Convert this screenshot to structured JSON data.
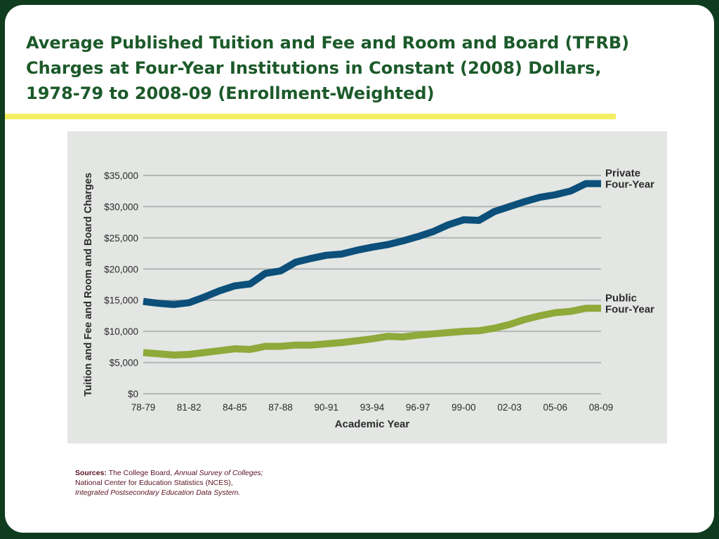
{
  "slide": {
    "title_lines": [
      "Average Published Tuition and Fee and Room and Board (TFRB)",
      "Charges at Four-Year Institutions in Constant (2008) Dollars,",
      "1978-79 to 2008-09 (Enrollment-Weighted)"
    ]
  },
  "colors": {
    "frame": "#0f3b1f",
    "title": "#1c5a2a",
    "rule": "#f4ee63",
    "panel": "#e3e6e3",
    "private_line": "#0b4f7a",
    "public_line": "#8fa93a",
    "sources_text": "#5a1020"
  },
  "chart_data": {
    "type": "line",
    "ylabel": "Tuition and Fee and Room and Board Charges",
    "xlabel": "Academic Year",
    "ylim": [
      0,
      35000
    ],
    "yticks": [
      0,
      5000,
      10000,
      15000,
      20000,
      25000,
      30000,
      35000
    ],
    "ytick_labels": [
      "$0",
      "$5,000",
      "$10,000",
      "$15,000",
      "$20,000",
      "$25,000",
      "$30,000",
      "$35,000"
    ],
    "x": [
      "78-79",
      "79-80",
      "80-81",
      "81-82",
      "82-83",
      "83-84",
      "84-85",
      "85-86",
      "86-87",
      "87-88",
      "88-89",
      "89-90",
      "90-91",
      "91-92",
      "92-93",
      "93-94",
      "94-95",
      "95-96",
      "96-97",
      "97-98",
      "98-99",
      "99-00",
      "00-01",
      "01-02",
      "02-03",
      "03-04",
      "04-05",
      "05-06",
      "06-07",
      "07-08",
      "08-09"
    ],
    "xtick_labels": [
      "78-79",
      "81-82",
      "84-85",
      "87-88",
      "90-91",
      "93-94",
      "96-97",
      "99-00",
      "02-03",
      "05-06",
      "08-09"
    ],
    "grid": true,
    "series": [
      {
        "name": "Private Four-Year",
        "label_lines": [
          "Private",
          "Four-Year"
        ],
        "values": [
          14800,
          14500,
          14300,
          14600,
          15500,
          16500,
          17300,
          17600,
          19300,
          19700,
          21100,
          21700,
          22200,
          22400,
          23000,
          23500,
          23900,
          24500,
          25200,
          26000,
          27100,
          27900,
          27800,
          29200,
          30000,
          30800,
          31500,
          31900,
          32500,
          33700,
          33700
        ]
      },
      {
        "name": "Public Four-Year",
        "label_lines": [
          "Public",
          "Four-Year"
        ],
        "values": [
          6600,
          6400,
          6200,
          6300,
          6600,
          6900,
          7200,
          7100,
          7600,
          7600,
          7800,
          7800,
          8000,
          8200,
          8500,
          8800,
          9200,
          9100,
          9400,
          9600,
          9800,
          10000,
          10100,
          10500,
          11100,
          11900,
          12500,
          13000,
          13200,
          13700,
          13700
        ]
      }
    ]
  },
  "sources": {
    "label": "Sources:",
    "line1_text": " The College Board, ",
    "line1_italic": "Annual Survey of Colleges;",
    "line2": "National Center for Education Statistics (NCES),",
    "line3_italic": "Integrated Postsecondary Education Data System."
  }
}
